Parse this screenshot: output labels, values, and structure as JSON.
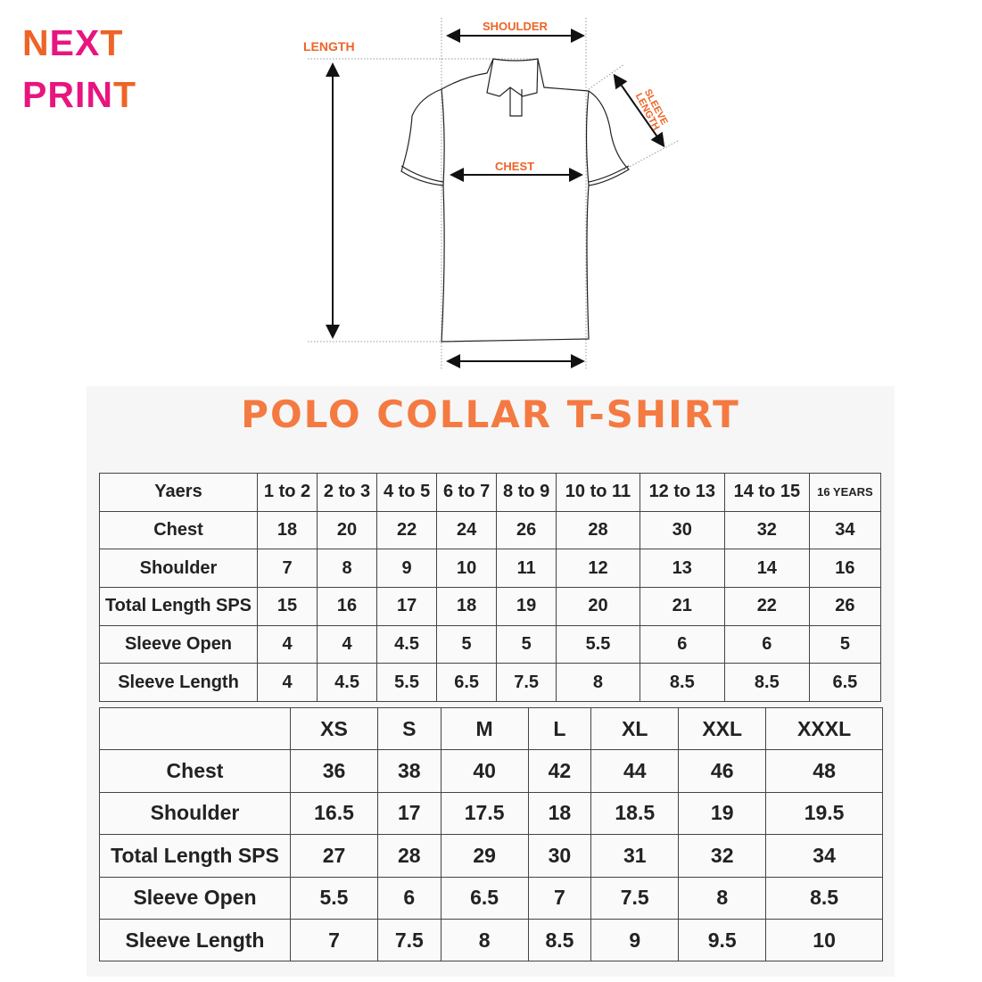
{
  "logo": {
    "line1": "NEXT",
    "line2": "PRINT"
  },
  "diagram": {
    "shoulder": "SHOULDER",
    "length": "LENGTH",
    "chest": "CHEST",
    "sleeve_length": "SLEEVE LENGTH"
  },
  "title": "POLO COLLAR T-SHIRT",
  "kids_table": {
    "header": [
      "Yaers",
      "1 to 2",
      "2 to 3",
      "4 to 5",
      "6 to 7",
      "8 to 9",
      "10 to 11",
      "12 to 13",
      "14 to 15",
      "16 YEARS"
    ],
    "rows": [
      [
        "Chest",
        "18",
        "20",
        "22",
        "24",
        "26",
        "28",
        "30",
        "32",
        "34"
      ],
      [
        "Shoulder",
        "7",
        "8",
        "9",
        "10",
        "11",
        "12",
        "13",
        "14",
        "16"
      ],
      [
        "Total Length SPS",
        "15",
        "16",
        "17",
        "18",
        "19",
        "20",
        "21",
        "22",
        "26"
      ],
      [
        "Sleeve Open",
        "4",
        "4",
        "4.5",
        "5",
        "5",
        "5.5",
        "6",
        "6",
        "5"
      ],
      [
        "Sleeve Length",
        "4",
        "4.5",
        "5.5",
        "6.5",
        "7.5",
        "8",
        "8.5",
        "8.5",
        "6.5"
      ]
    ]
  },
  "adult_table": {
    "header": [
      "",
      "XS",
      "S",
      "M",
      "L",
      "XL",
      "XXL",
      "XXXL"
    ],
    "rows": [
      [
        "Chest",
        "36",
        "38",
        "40",
        "42",
        "44",
        "46",
        "48"
      ],
      [
        "Shoulder",
        "16.5",
        "17",
        "17.5",
        "18",
        "18.5",
        "19",
        "19.5"
      ],
      [
        "Total Length SPS",
        "27",
        "28",
        "29",
        "30",
        "31",
        "32",
        "34"
      ],
      [
        "Sleeve Open",
        "5.5",
        "6",
        "6.5",
        "7",
        "7.5",
        "8",
        "8.5"
      ],
      [
        "Sleeve Length",
        "7",
        "7.5",
        "8",
        "8.5",
        "9",
        "9.5",
        "10"
      ]
    ]
  }
}
